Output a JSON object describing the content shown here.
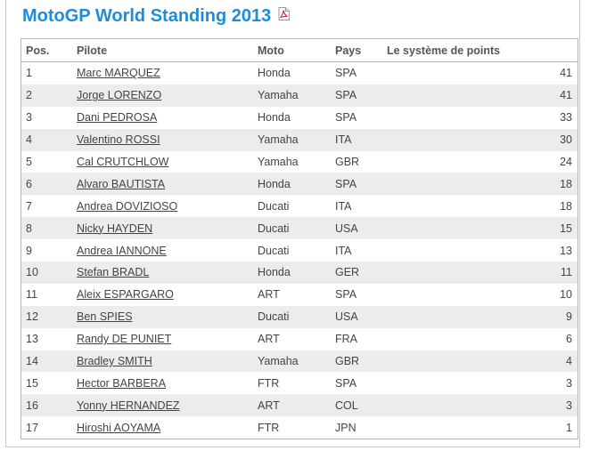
{
  "page": {
    "title": "MotoGP World Standing 2013",
    "pdf_icon": "pdf-icon"
  },
  "table": {
    "headers": {
      "pos": "Pos.",
      "pilot": "Pilote",
      "moto": "Moto",
      "pays": "Pays",
      "points": "Le système de points"
    },
    "rows": [
      {
        "pos": "1",
        "pilot": "Marc MARQUEZ",
        "moto": "Honda",
        "pays": "SPA",
        "points": "41"
      },
      {
        "pos": "2",
        "pilot": "Jorge LORENZO",
        "moto": "Yamaha",
        "pays": "SPA",
        "points": "41"
      },
      {
        "pos": "3",
        "pilot": "Dani PEDROSA",
        "moto": "Honda",
        "pays": "SPA",
        "points": "33"
      },
      {
        "pos": "4",
        "pilot": "Valentino ROSSI",
        "moto": "Yamaha",
        "pays": "ITA",
        "points": "30"
      },
      {
        "pos": "5",
        "pilot": "Cal CRUTCHLOW",
        "moto": "Yamaha",
        "pays": "GBR",
        "points": "24"
      },
      {
        "pos": "6",
        "pilot": "Alvaro BAUTISTA",
        "moto": "Honda",
        "pays": "SPA",
        "points": "18"
      },
      {
        "pos": "7",
        "pilot": "Andrea DOVIZIOSO",
        "moto": "Ducati",
        "pays": "ITA",
        "points": "18"
      },
      {
        "pos": "8",
        "pilot": "Nicky HAYDEN",
        "moto": "Ducati",
        "pays": "USA",
        "points": "15"
      },
      {
        "pos": "9",
        "pilot": "Andrea IANNONE",
        "moto": "Ducati",
        "pays": "ITA",
        "points": "13"
      },
      {
        "pos": "10",
        "pilot": "Stefan BRADL",
        "moto": "Honda",
        "pays": "GER",
        "points": "11"
      },
      {
        "pos": "11",
        "pilot": "Aleix ESPARGARO",
        "moto": "ART",
        "pays": "SPA",
        "points": "10"
      },
      {
        "pos": "12",
        "pilot": "Ben SPIES",
        "moto": "Ducati",
        "pays": "USA",
        "points": "9"
      },
      {
        "pos": "13",
        "pilot": "Randy DE PUNIET",
        "moto": "ART",
        "pays": "FRA",
        "points": "6"
      },
      {
        "pos": "14",
        "pilot": "Bradley SMITH",
        "moto": "Yamaha",
        "pays": "GBR",
        "points": "4"
      },
      {
        "pos": "15",
        "pilot": "Hector BARBERA",
        "moto": "FTR",
        "pays": "SPA",
        "points": "3"
      },
      {
        "pos": "16",
        "pilot": "Yonny HERNANDEZ",
        "moto": "ART",
        "pays": "COL",
        "points": "3"
      },
      {
        "pos": "17",
        "pilot": "Hiroshi AOYAMA",
        "moto": "FTR",
        "pays": "JPN",
        "points": "1"
      }
    ]
  },
  "colors": {
    "title": "#1f8dd6",
    "row_alt": "#ececec",
    "border": "#b5b5b5",
    "text": "#444444"
  }
}
